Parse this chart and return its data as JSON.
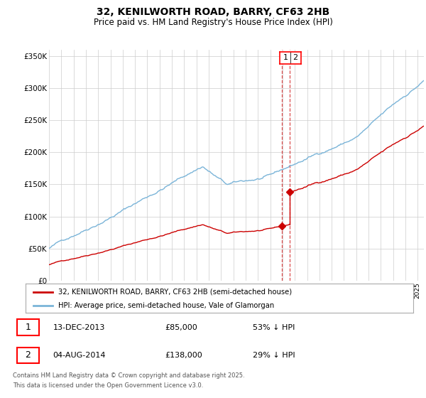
{
  "title": "32, KENILWORTH ROAD, BARRY, CF63 2HB",
  "subtitle": "Price paid vs. HM Land Registry's House Price Index (HPI)",
  "hpi_color": "#7ab4d8",
  "price_color": "#cc0000",
  "vline_color": "#cc0000",
  "grid_color": "#cccccc",
  "bg_color": "#ffffff",
  "legend_label_price": "32, KENILWORTH ROAD, BARRY, CF63 2HB (semi-detached house)",
  "legend_label_hpi": "HPI: Average price, semi-detached house, Vale of Glamorgan",
  "transaction1_date": "13-DEC-2013",
  "transaction1_price": "£85,000",
  "transaction1_note": "53% ↓ HPI",
  "transaction1_year": 2013.95,
  "transaction1_value": 85000,
  "transaction2_date": "04-AUG-2014",
  "transaction2_price": "£138,000",
  "transaction2_note": "29% ↓ HPI",
  "transaction2_year": 2014.58,
  "transaction2_value": 138000,
  "footnote1": "Contains HM Land Registry data © Crown copyright and database right 2025.",
  "footnote2": "This data is licensed under the Open Government Licence v3.0.",
  "xstart": 1995,
  "xend": 2025.5,
  "ymax": 360000,
  "yticks": [
    0,
    50000,
    100000,
    150000,
    200000,
    250000,
    300000,
    350000
  ],
  "ytick_labels": [
    "£0",
    "£50K",
    "£100K",
    "£150K",
    "£200K",
    "£250K",
    "£300K",
    "£350K"
  ]
}
